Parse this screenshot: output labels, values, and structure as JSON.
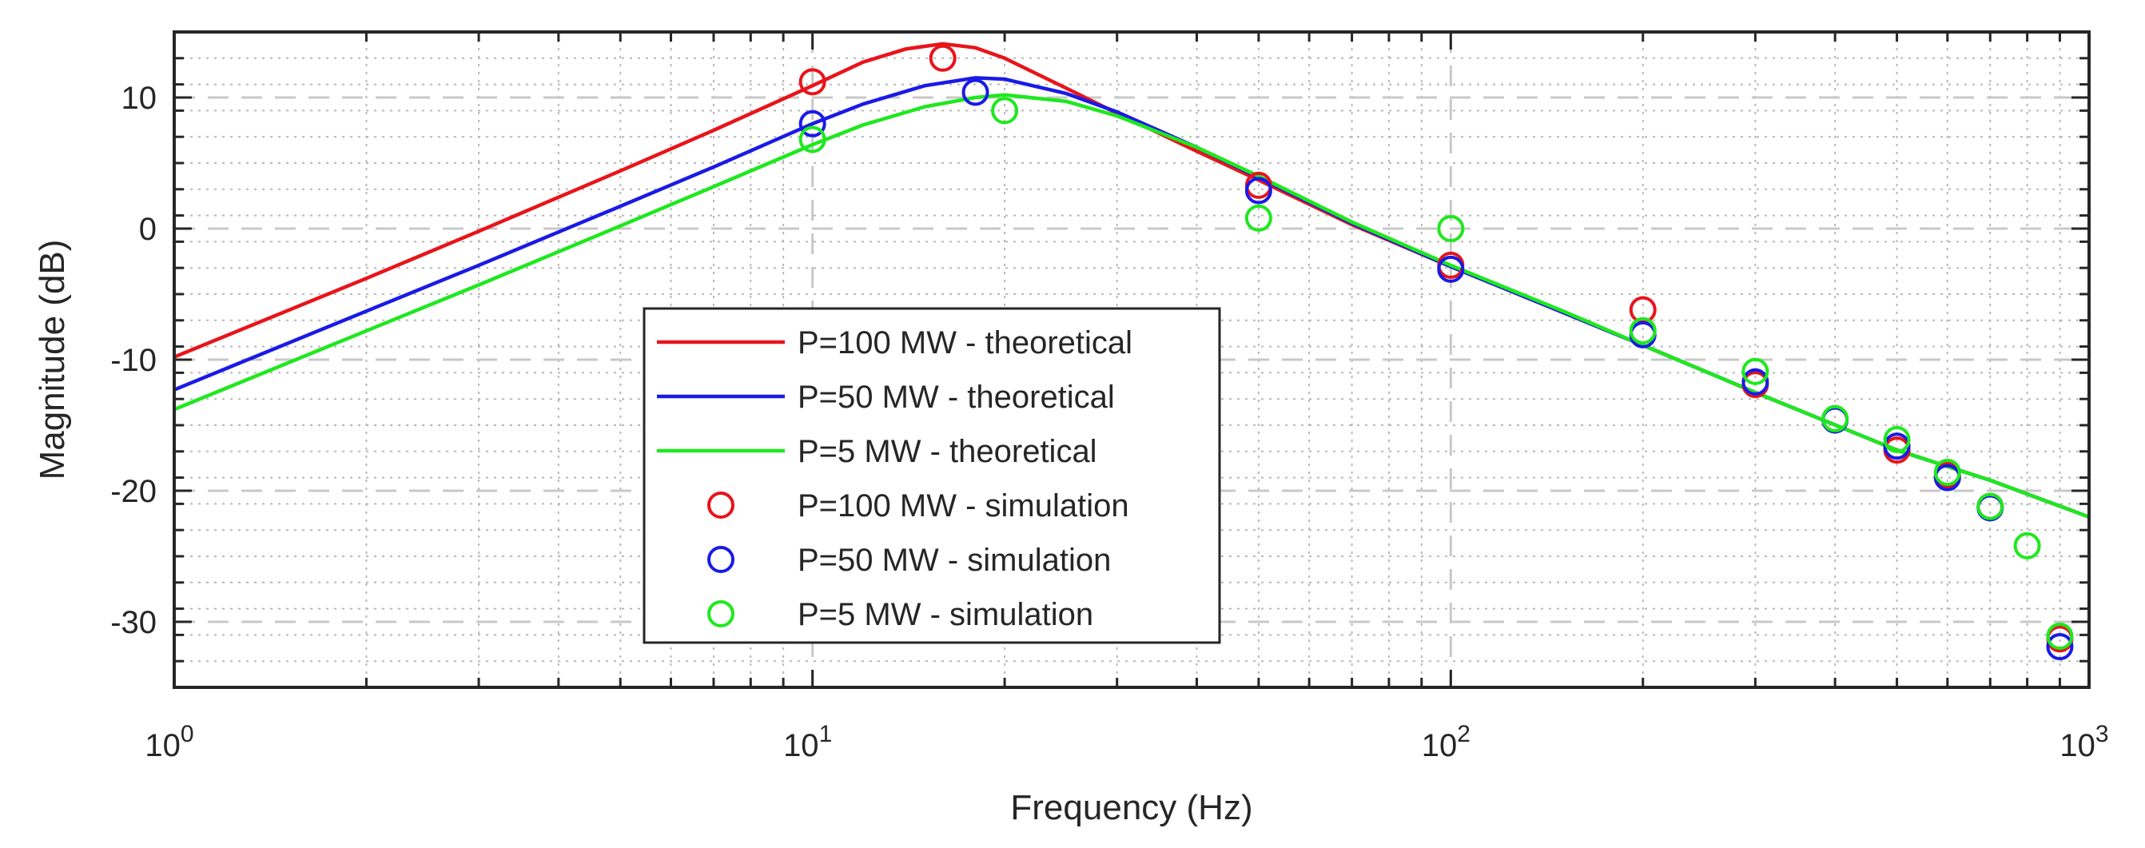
{
  "chart_data": {
    "type": "line",
    "title": "",
    "xlabel": "Frequency (Hz)",
    "ylabel": "Magnitude (dB)",
    "xscale": "log",
    "xlim": [
      1,
      1000
    ],
    "ylim": [
      -35,
      15
    ],
    "grid": true,
    "minor_grid": true,
    "legend_position": "center-left",
    "x_ticks": [
      {
        "value": 1,
        "base": "10",
        "exp": "0"
      },
      {
        "value": 10,
        "base": "10",
        "exp": "1"
      },
      {
        "value": 100,
        "base": "10",
        "exp": "2"
      },
      {
        "value": 1000,
        "base": "10",
        "exp": "3"
      }
    ],
    "y_ticks": [
      {
        "value": 10,
        "label": "10"
      },
      {
        "value": 0,
        "label": "0"
      },
      {
        "value": -10,
        "label": "-10"
      },
      {
        "value": -20,
        "label": "-20"
      },
      {
        "value": -30,
        "label": "-30"
      }
    ],
    "series": [
      {
        "name": "P=100 MW - theoretical",
        "style": "line",
        "color": "#e8141b",
        "x": [
          1,
          2,
          3,
          5,
          7,
          10,
          12,
          14,
          16,
          18,
          20,
          25,
          30,
          40,
          50,
          70,
          100,
          150,
          200,
          300,
          500,
          700,
          1000
        ],
        "y": [
          -9.8,
          -3.8,
          -0.2,
          4.4,
          7.5,
          10.9,
          12.7,
          13.7,
          14.1,
          13.8,
          13.0,
          10.7,
          8.8,
          5.9,
          3.7,
          0.3,
          -2.9,
          -6.4,
          -8.9,
          -12.5,
          -16.9,
          -19.2,
          -22.0
        ]
      },
      {
        "name": "P=50 MW - theoretical",
        "style": "line",
        "color": "#1a1ae6",
        "x": [
          1,
          2,
          3,
          5,
          7,
          10,
          12,
          15,
          18,
          20,
          25,
          30,
          40,
          50,
          70,
          100,
          150,
          200,
          300,
          500,
          700,
          1000
        ],
        "y": [
          -12.3,
          -6.3,
          -2.8,
          1.7,
          4.7,
          8.0,
          9.5,
          10.9,
          11.5,
          11.4,
          10.3,
          8.9,
          6.2,
          3.9,
          0.4,
          -2.9,
          -6.4,
          -8.9,
          -12.5,
          -16.9,
          -19.2,
          -22.0
        ]
      },
      {
        "name": "P=5 MW - theoretical",
        "style": "line",
        "color": "#1ee81e",
        "x": [
          1,
          2,
          3,
          5,
          7,
          10,
          12,
          15,
          18,
          20,
          25,
          30,
          40,
          50,
          70,
          100,
          150,
          200,
          300,
          500,
          700,
          1000
        ],
        "y": [
          -13.8,
          -7.8,
          -4.3,
          0.2,
          3.2,
          6.4,
          7.9,
          9.3,
          10.0,
          10.2,
          9.7,
          8.6,
          6.2,
          4.0,
          0.5,
          -2.8,
          -6.3,
          -8.9,
          -12.5,
          -16.9,
          -19.2,
          -22.0
        ]
      },
      {
        "name": "P=100 MW - simulation",
        "style": "marker",
        "color": "#e8141b",
        "x": [
          10,
          16,
          50,
          100,
          200,
          300,
          500,
          600,
          700,
          900
        ],
        "y": [
          11.2,
          13.0,
          3.3,
          -2.8,
          -6.2,
          -11.9,
          -16.9,
          -18.8,
          -21.2,
          -31.3
        ]
      },
      {
        "name": "P=50 MW - simulation",
        "style": "marker",
        "color": "#1a1ae6",
        "x": [
          10,
          18,
          50,
          100,
          200,
          300,
          400,
          500,
          600,
          700,
          900
        ],
        "y": [
          8.0,
          10.4,
          2.9,
          -3.1,
          -8.1,
          -11.7,
          -14.6,
          -16.6,
          -19.0,
          -21.3,
          -31.9
        ]
      },
      {
        "name": "P=5 MW - simulation",
        "style": "marker",
        "color": "#1ee81e",
        "x": [
          10,
          20,
          50,
          100,
          200,
          300,
          400,
          500,
          600,
          700,
          800,
          900
        ],
        "y": [
          6.8,
          9.0,
          0.8,
          0.0,
          -7.8,
          -10.9,
          -14.5,
          -16.1,
          -18.6,
          -21.2,
          -24.2,
          -31.1
        ]
      }
    ]
  }
}
